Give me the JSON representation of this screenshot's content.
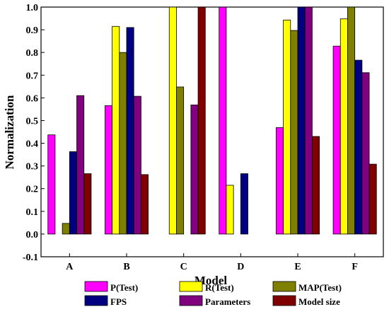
{
  "chart_data": {
    "type": "bar",
    "title": "",
    "xlabel": "Model",
    "ylabel": "Normalization",
    "categories": [
      "A",
      "B",
      "C",
      "D",
      "E",
      "F"
    ],
    "ylim": [
      -0.1,
      1.0
    ],
    "yticks": [
      -0.1,
      0.0,
      0.1,
      0.2,
      0.3,
      0.4,
      0.5,
      0.6,
      0.7,
      0.8,
      0.9,
      1.0
    ],
    "ytick_labels": [
      "-0.1",
      "0.0",
      "0.1",
      "0.2",
      "0.3",
      "0.4",
      "0.5",
      "0.6",
      "0.7",
      "0.8",
      "0.9",
      "1.0"
    ],
    "grid": false,
    "legend_position": "bottom",
    "series": [
      {
        "name": "P(Test)",
        "color": "#ff00ff",
        "values": [
          0.437,
          0.566,
          0.0,
          1.0,
          0.469,
          0.828
        ]
      },
      {
        "name": "R(Test)",
        "color": "#ffff00",
        "values": [
          0.0,
          0.915,
          1.0,
          0.215,
          0.943,
          0.948
        ]
      },
      {
        "name": "MAP(Test)",
        "color": "#808000",
        "values": [
          0.047,
          0.8,
          0.648,
          0.0,
          0.897,
          1.0
        ]
      },
      {
        "name": "FPS",
        "color": "#000080",
        "values": [
          0.363,
          0.91,
          0.0,
          0.266,
          1.0,
          0.766
        ]
      },
      {
        "name": "Parameters",
        "color": "#800080",
        "values": [
          0.61,
          0.607,
          0.569,
          0.0,
          1.0,
          0.711
        ]
      },
      {
        "name": "Model size",
        "color": "#800000",
        "values": [
          0.266,
          0.262,
          1.0,
          0.0,
          0.43,
          0.308
        ]
      }
    ]
  }
}
